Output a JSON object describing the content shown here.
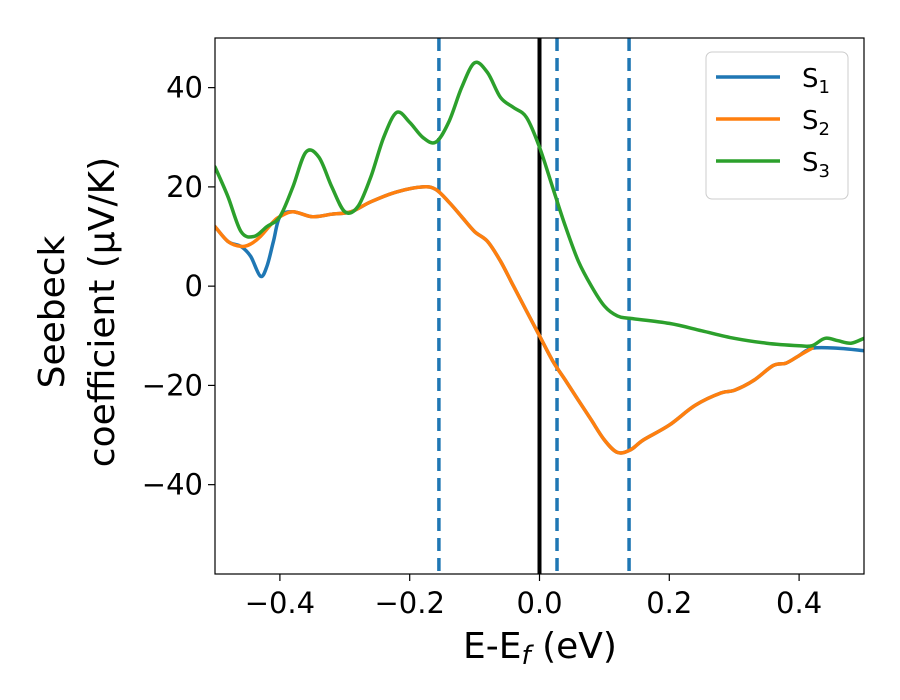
{
  "chart_data": {
    "type": "line",
    "title": "",
    "xlabel": {
      "main": "E-E",
      "sub": "f",
      "tail": " (eV)"
    },
    "ylabel": {
      "line1": "Seebeck",
      "line2": "coefficient  (μV/K)"
    },
    "xlim": [
      -0.5,
      0.5
    ],
    "ylim": [
      -58,
      50
    ],
    "xticks": [
      -0.4,
      -0.2,
      0.0,
      0.2,
      0.4
    ],
    "xtick_labels": [
      "−0.4",
      "−0.2",
      "0.0",
      "0.2",
      "0.4"
    ],
    "yticks": [
      -40,
      -20,
      0,
      20,
      40
    ],
    "ytick_labels": [
      "−40",
      "−20",
      "0",
      "20",
      "40"
    ],
    "grid": false,
    "legend_position": "top-right",
    "series": [
      {
        "label": {
          "main": "S",
          "sub": "1"
        },
        "color": "#1f77b4",
        "points": [
          [
            -0.5,
            12
          ],
          [
            -0.48,
            9
          ],
          [
            -0.46,
            8
          ],
          [
            -0.445,
            6
          ],
          [
            -0.43,
            2
          ],
          [
            -0.42,
            4
          ],
          [
            -0.41,
            9
          ],
          [
            -0.4,
            14
          ],
          [
            -0.38,
            15
          ],
          [
            -0.35,
            14
          ],
          [
            -0.32,
            14.5
          ],
          [
            -0.29,
            15
          ],
          [
            -0.26,
            17
          ],
          [
            -0.22,
            19
          ],
          [
            -0.18,
            20
          ],
          [
            -0.16,
            19.5
          ],
          [
            -0.14,
            17
          ],
          [
            -0.12,
            14
          ],
          [
            -0.1,
            11
          ],
          [
            -0.08,
            9
          ],
          [
            -0.06,
            5
          ],
          [
            -0.04,
            0
          ],
          [
            -0.02,
            -5
          ],
          [
            0.0,
            -10
          ],
          [
            0.02,
            -15
          ],
          [
            0.04,
            -19
          ],
          [
            0.06,
            -23
          ],
          [
            0.08,
            -27
          ],
          [
            0.1,
            -31
          ],
          [
            0.12,
            -33.5
          ],
          [
            0.14,
            -33
          ],
          [
            0.16,
            -31
          ],
          [
            0.2,
            -28
          ],
          [
            0.24,
            -24
          ],
          [
            0.28,
            -21.5
          ],
          [
            0.3,
            -21
          ],
          [
            0.33,
            -19
          ],
          [
            0.36,
            -16
          ],
          [
            0.38,
            -15.5
          ],
          [
            0.4,
            -14
          ],
          [
            0.42,
            -12.5
          ],
          [
            0.46,
            -12.5
          ],
          [
            0.5,
            -13
          ]
        ]
      },
      {
        "label": {
          "main": "S",
          "sub": "2"
        },
        "color": "#ff7f0e",
        "points": [
          [
            -0.5,
            12
          ],
          [
            -0.48,
            9
          ],
          [
            -0.46,
            8
          ],
          [
            -0.445,
            8.5
          ],
          [
            -0.43,
            10
          ],
          [
            -0.41,
            13
          ],
          [
            -0.4,
            14
          ],
          [
            -0.38,
            15
          ],
          [
            -0.35,
            14
          ],
          [
            -0.32,
            14.5
          ],
          [
            -0.29,
            15
          ],
          [
            -0.26,
            17
          ],
          [
            -0.22,
            19
          ],
          [
            -0.18,
            20
          ],
          [
            -0.16,
            19.5
          ],
          [
            -0.14,
            17
          ],
          [
            -0.12,
            14
          ],
          [
            -0.1,
            11
          ],
          [
            -0.08,
            9
          ],
          [
            -0.06,
            5
          ],
          [
            -0.04,
            0
          ],
          [
            -0.02,
            -5
          ],
          [
            0.0,
            -10
          ],
          [
            0.02,
            -15
          ],
          [
            0.04,
            -19
          ],
          [
            0.06,
            -23
          ],
          [
            0.08,
            -27
          ],
          [
            0.1,
            -31
          ],
          [
            0.12,
            -33.5
          ],
          [
            0.14,
            -33
          ],
          [
            0.16,
            -31
          ],
          [
            0.2,
            -28
          ],
          [
            0.24,
            -24
          ],
          [
            0.28,
            -21.5
          ],
          [
            0.3,
            -21
          ],
          [
            0.33,
            -19
          ],
          [
            0.36,
            -16
          ],
          [
            0.38,
            -15.5
          ],
          [
            0.4,
            -14
          ],
          [
            0.42,
            -12.5
          ]
        ]
      },
      {
        "label": {
          "main": "S",
          "sub": "3"
        },
        "color": "#2ca02c",
        "points": [
          [
            -0.5,
            24
          ],
          [
            -0.48,
            18
          ],
          [
            -0.46,
            11
          ],
          [
            -0.44,
            10
          ],
          [
            -0.42,
            12
          ],
          [
            -0.4,
            14
          ],
          [
            -0.38,
            20
          ],
          [
            -0.36,
            27
          ],
          [
            -0.34,
            26
          ],
          [
            -0.32,
            20
          ],
          [
            -0.3,
            15
          ],
          [
            -0.28,
            16
          ],
          [
            -0.26,
            22
          ],
          [
            -0.24,
            30
          ],
          [
            -0.22,
            35
          ],
          [
            -0.2,
            33
          ],
          [
            -0.18,
            30
          ],
          [
            -0.16,
            29
          ],
          [
            -0.14,
            33
          ],
          [
            -0.12,
            40
          ],
          [
            -0.1,
            45
          ],
          [
            -0.08,
            43
          ],
          [
            -0.06,
            38
          ],
          [
            -0.04,
            36
          ],
          [
            -0.02,
            34
          ],
          [
            0.0,
            28
          ],
          [
            0.02,
            20
          ],
          [
            0.04,
            12
          ],
          [
            0.06,
            5
          ],
          [
            0.08,
            0
          ],
          [
            0.1,
            -4
          ],
          [
            0.12,
            -6
          ],
          [
            0.14,
            -6.5
          ],
          [
            0.2,
            -7.5
          ],
          [
            0.25,
            -9
          ],
          [
            0.3,
            -10.5
          ],
          [
            0.35,
            -11.5
          ],
          [
            0.4,
            -12
          ],
          [
            0.42,
            -12
          ],
          [
            0.44,
            -10.5
          ],
          [
            0.46,
            -11
          ],
          [
            0.48,
            -11.5
          ],
          [
            0.5,
            -10.5
          ]
        ]
      }
    ],
    "vertical_lines": [
      {
        "x": 0.0,
        "style": "solid",
        "color": "#000000"
      },
      {
        "x": -0.155,
        "style": "dashed",
        "color": "#1f77b4"
      },
      {
        "x": 0.027,
        "style": "dashed",
        "color": "#1f77b4"
      },
      {
        "x": 0.138,
        "style": "dashed",
        "color": "#1f77b4"
      }
    ]
  }
}
